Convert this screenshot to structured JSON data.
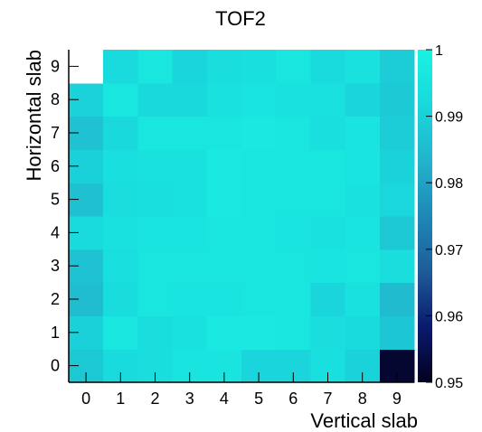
{
  "chart_data": {
    "type": "heatmap",
    "title": "TOF2",
    "xlabel": "Vertical slab",
    "ylabel": "Horizontal slab",
    "x_categories": [
      "0",
      "1",
      "2",
      "3",
      "4",
      "5",
      "6",
      "7",
      "8",
      "9"
    ],
    "y_categories": [
      "0",
      "1",
      "2",
      "3",
      "4",
      "5",
      "6",
      "7",
      "8",
      "9"
    ],
    "zlim": [
      0.95,
      1.0
    ],
    "colorbar_ticks": [
      "1",
      "0.99",
      "0.98",
      "0.97",
      "0.96",
      "0.95"
    ],
    "colorbar_tick_values": [
      1.0,
      0.99,
      0.98,
      0.97,
      0.96,
      0.95
    ],
    "color_scale": [
      "#03001e",
      "#0a1a6e",
      "#1e5c98",
      "#1e88b6",
      "#22b4cc",
      "#19d8dc",
      "#19f2e2"
    ],
    "grid": false,
    "matrix": [
      [
        0.988,
        0.9925,
        0.9935,
        0.9955,
        0.9955,
        0.991,
        0.991,
        0.994,
        0.9905,
        0.952
      ],
      [
        0.99,
        0.996,
        0.9935,
        0.9945,
        0.997,
        0.997,
        0.996,
        0.9935,
        0.9925,
        0.9875
      ],
      [
        0.9855,
        0.993,
        0.996,
        0.9955,
        0.9955,
        0.9965,
        0.996,
        0.991,
        0.995,
        0.985
      ],
      [
        0.9865,
        0.994,
        0.996,
        0.996,
        0.9965,
        0.996,
        0.996,
        0.9955,
        0.996,
        0.9935
      ],
      [
        0.9925,
        0.995,
        0.9955,
        0.9955,
        0.9965,
        0.996,
        0.9955,
        0.995,
        0.9955,
        0.988
      ],
      [
        0.986,
        0.9935,
        0.994,
        0.995,
        0.997,
        0.9965,
        0.996,
        0.996,
        0.995,
        0.9915
      ],
      [
        0.99,
        0.994,
        0.9945,
        0.995,
        0.997,
        0.996,
        0.996,
        0.996,
        0.9955,
        0.9905
      ],
      [
        0.9865,
        0.992,
        0.996,
        0.996,
        0.996,
        0.997,
        0.996,
        0.994,
        0.9955,
        0.989
      ],
      [
        0.9905,
        0.996,
        0.992,
        0.992,
        0.995,
        0.9955,
        0.995,
        0.995,
        0.991,
        0.9885
      ],
      [
        null,
        0.9925,
        0.996,
        0.991,
        0.9935,
        0.994,
        0.9965,
        0.9925,
        0.9945,
        0.989
      ]
    ]
  }
}
